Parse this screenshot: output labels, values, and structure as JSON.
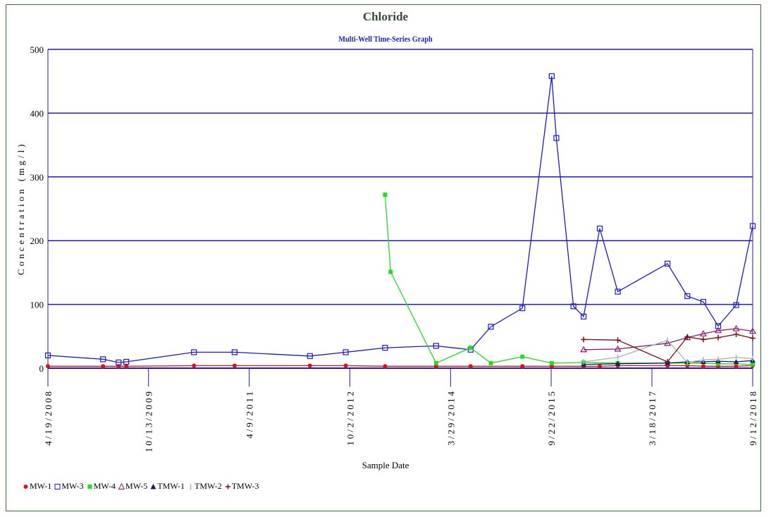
{
  "chart_data": {
    "type": "line",
    "title": "Chloride",
    "subtitle": "Multi-Well Time-Series Graph",
    "xlabel": "Sample Date",
    "ylabel": "Concentration (mg/l)",
    "ylim": [
      0,
      500
    ],
    "yticks": [
      "0",
      "100",
      "200",
      "300",
      "400",
      "500"
    ],
    "xlim": [
      "2008-04-19",
      "2018-09-12"
    ],
    "xtick_labels": [
      {
        "label": "4/19/2008",
        "date": "2008-04-19"
      },
      {
        "label": "10/13/2009",
        "date": "2009-10-13"
      },
      {
        "label": "4/9/2011",
        "date": "2011-04-09"
      },
      {
        "label": "10/2/2012",
        "date": "2012-10-02"
      },
      {
        "label": "3/29/2014",
        "date": "2014-03-29"
      },
      {
        "label": "9/22/2015",
        "date": "2015-09-22"
      },
      {
        "label": "3/18/2017",
        "date": "2017-03-18"
      },
      {
        "label": "9/12/2018",
        "date": "2018-09-12"
      }
    ],
    "grid": true,
    "legend_position": "bottom-left",
    "series": [
      {
        "name": "MW-1",
        "color": "#e01010",
        "marker": "circle",
        "points": [
          [
            "2008-04-19",
            3
          ],
          [
            "2009-02-10",
            3
          ],
          [
            "2009-05-05",
            3
          ],
          [
            "2009-06-15",
            3
          ],
          [
            "2010-06-15",
            4
          ],
          [
            "2011-01-20",
            4
          ],
          [
            "2012-03-01",
            4
          ],
          [
            "2012-09-10",
            4
          ],
          [
            "2013-04-10",
            3
          ],
          [
            "2014-01-10",
            3
          ],
          [
            "2014-07-15",
            3
          ],
          [
            "2015-04-20",
            3
          ],
          [
            "2015-09-25",
            3
          ],
          [
            "2016-03-15",
            3
          ],
          [
            "2016-06-10",
            3
          ],
          [
            "2016-09-15",
            4
          ],
          [
            "2017-06-10",
            4
          ],
          [
            "2017-09-25",
            4
          ],
          [
            "2017-12-20",
            3
          ],
          [
            "2018-03-10",
            3
          ],
          [
            "2018-06-15",
            3
          ],
          [
            "2018-09-12",
            4
          ]
        ]
      },
      {
        "name": "MW-3",
        "color": "#1a1acc",
        "marker": "square",
        "points": [
          [
            "2008-04-19",
            20
          ],
          [
            "2009-02-10",
            14
          ],
          [
            "2009-05-05",
            9
          ],
          [
            "2009-06-15",
            10
          ],
          [
            "2010-06-15",
            25
          ],
          [
            "2011-01-20",
            25
          ],
          [
            "2012-03-01",
            19
          ],
          [
            "2012-09-10",
            25
          ],
          [
            "2013-04-10",
            32
          ],
          [
            "2014-01-10",
            35
          ],
          [
            "2014-07-15",
            29
          ],
          [
            "2014-11-01",
            65
          ],
          [
            "2015-04-20",
            94
          ],
          [
            "2015-09-25",
            458
          ],
          [
            "2015-10-20",
            361
          ],
          [
            "2016-01-20",
            97
          ],
          [
            "2016-03-15",
            81
          ],
          [
            "2016-06-10",
            219
          ],
          [
            "2016-09-15",
            120
          ],
          [
            "2017-06-10",
            164
          ],
          [
            "2017-09-25",
            113
          ],
          [
            "2017-12-20",
            104
          ],
          [
            "2018-03-10",
            66
          ],
          [
            "2018-06-15",
            99
          ],
          [
            "2018-09-12",
            223
          ]
        ]
      },
      {
        "name": "MW-4",
        "color": "#22dd22",
        "marker": "filled-square",
        "points": [
          [
            "2013-04-10",
            272
          ],
          [
            "2013-05-10",
            151
          ],
          [
            "2014-01-10",
            8
          ],
          [
            "2014-07-15",
            32
          ],
          [
            "2014-11-01",
            8
          ],
          [
            "2015-04-20",
            18
          ],
          [
            "2015-09-25",
            8
          ],
          [
            "2016-03-15",
            9
          ],
          [
            "2016-09-15",
            8
          ],
          [
            "2017-06-10",
            8
          ],
          [
            "2017-09-25",
            8
          ],
          [
            "2018-03-10",
            7
          ],
          [
            "2018-09-12",
            6
          ]
        ]
      },
      {
        "name": "MW-5",
        "color": "#8b1a6b",
        "marker": "triangle",
        "points": [
          [
            "2016-03-15",
            29
          ],
          [
            "2016-09-15",
            30
          ],
          [
            "2017-06-10",
            39
          ],
          [
            "2017-09-25",
            48
          ],
          [
            "2017-12-20",
            54
          ],
          [
            "2018-03-10",
            59
          ],
          [
            "2018-06-15",
            62
          ],
          [
            "2018-09-12",
            58
          ]
        ]
      },
      {
        "name": "TMW-1",
        "color": "#102060",
        "marker": "filled-triangle",
        "points": [
          [
            "2016-03-15",
            6
          ],
          [
            "2016-09-15",
            7
          ],
          [
            "2017-06-10",
            8
          ],
          [
            "2017-09-25",
            10
          ],
          [
            "2017-12-20",
            10
          ],
          [
            "2018-03-10",
            11
          ],
          [
            "2018-06-15",
            10
          ],
          [
            "2018-09-12",
            12
          ]
        ]
      },
      {
        "name": "TMW-2",
        "color": "#a0b4b4",
        "marker": "tick",
        "points": [
          [
            "2016-03-15",
            10
          ],
          [
            "2016-09-15",
            17
          ],
          [
            "2017-06-10",
            44
          ],
          [
            "2017-09-25",
            9
          ],
          [
            "2017-12-20",
            13
          ],
          [
            "2018-03-10",
            14
          ],
          [
            "2018-06-15",
            17
          ],
          [
            "2018-09-12",
            15
          ]
        ]
      },
      {
        "name": "TMW-3",
        "color": "#7a1010",
        "marker": "cross",
        "points": [
          [
            "2016-03-15",
            45
          ],
          [
            "2016-09-15",
            44
          ],
          [
            "2017-06-10",
            10
          ],
          [
            "2017-09-25",
            49
          ],
          [
            "2017-12-20",
            45
          ],
          [
            "2018-03-10",
            48
          ],
          [
            "2018-06-15",
            53
          ],
          [
            "2018-09-12",
            47
          ]
        ]
      }
    ]
  }
}
